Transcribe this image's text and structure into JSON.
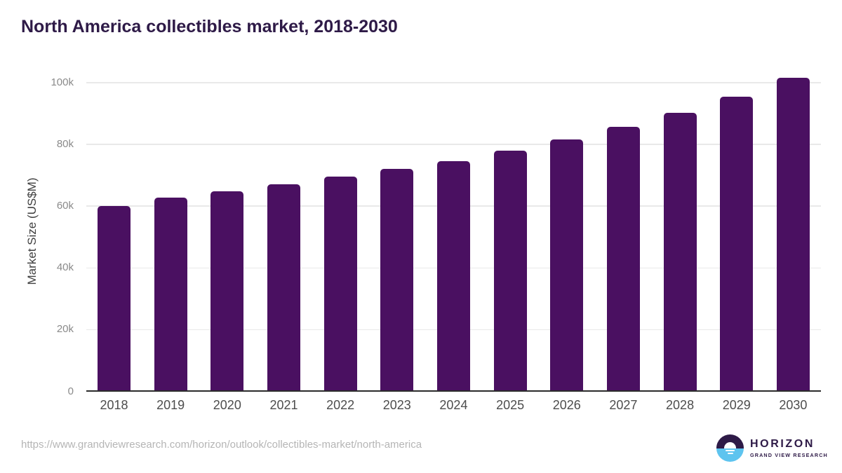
{
  "page": {
    "title": "North America collectibles market, 2018-2030"
  },
  "chart_data": {
    "type": "bar",
    "title": "North America collectibles market, 2018-2030",
    "categories": [
      "2018",
      "2019",
      "2020",
      "2021",
      "2022",
      "2023",
      "2024",
      "2025",
      "2026",
      "2027",
      "2028",
      "2029",
      "2030"
    ],
    "values": [
      59800,
      62700,
      64700,
      66800,
      69300,
      71900,
      74500,
      77800,
      81400,
      85600,
      90100,
      95300,
      101300
    ],
    "xlabel": "",
    "ylabel": "Market Size (US$M)",
    "ylim": [
      0,
      100000
    ],
    "ytick_interval": 20000,
    "ytick_labels": [
      "0",
      "20k",
      "40k",
      "60k",
      "80k",
      "100k"
    ],
    "grid": true,
    "legend": "none",
    "bar_color": "#4a1061"
  },
  "footer": {
    "source_url": "https://www.grandviewresearch.com/horizon/outlook/collectibles-market/north-america",
    "logo_brand": "HORIZON",
    "logo_subtitle": "GRAND VIEW RESEARCH"
  },
  "colors": {
    "title_text": "#2e1a47",
    "bar": "#4a1061",
    "gridline": "#e9e9e9",
    "axis_line": "#2b2b2b",
    "y_tick_text": "#8a8a8a",
    "x_tick_text": "#4d4d4d",
    "url_text": "#b5b5b5",
    "logo_purple": "#2e1a47",
    "logo_blue": "#5ec4ef"
  }
}
